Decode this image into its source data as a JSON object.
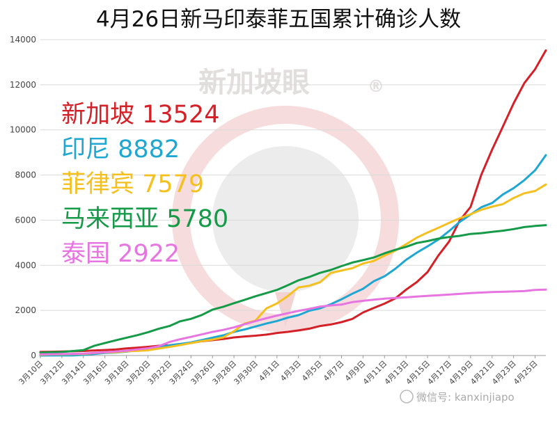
{
  "chart_data": {
    "type": "line",
    "title": "4月26日新马印泰菲五国累计确诊人数",
    "xlabel": "",
    "ylabel": "",
    "ylim": [
      0,
      14000
    ],
    "yticks": [
      0,
      2000,
      4000,
      6000,
      8000,
      10000,
      12000,
      14000
    ],
    "grid": "horizontal",
    "legend_position": "left",
    "dates": [
      "3月10日",
      "3月11日",
      "3月12日",
      "3月13日",
      "3月14日",
      "3月15日",
      "3月16日",
      "3月17日",
      "3月18日",
      "3月19日",
      "3月20日",
      "3月21日",
      "3月22日",
      "3月23日",
      "3月24日",
      "3月25日",
      "3月26日",
      "3月27日",
      "3月28日",
      "3月29日",
      "3月30日",
      "3月31日",
      "4月1日",
      "4月2日",
      "4月3日",
      "4月4日",
      "4月5日",
      "4月6日",
      "4月7日",
      "4月8日",
      "4月9日",
      "4月10日",
      "4月11日",
      "4月12日",
      "4月13日",
      "4月14日",
      "4月15日",
      "4月16日",
      "4月17日",
      "4月18日",
      "4月19日",
      "4月20日",
      "4月21日",
      "4月22日",
      "4月23日",
      "4月24日",
      "4月25日",
      "4月26日"
    ],
    "x_tick_labels": [
      "3月10日",
      "3月12日",
      "3月14日",
      "3月16日",
      "3月18日",
      "3月20日",
      "3月22日",
      "3月24日",
      "3月26日",
      "3月28日",
      "3月30日",
      "4月1日",
      "4月3日",
      "4月5日",
      "4月7日",
      "4月9日",
      "4月11日",
      "4月13日",
      "4月15日",
      "4月17日",
      "4月19日",
      "4月21日",
      "4月23日",
      "4月25日"
    ],
    "series": [
      {
        "name": "新加坡",
        "label": "新加坡 13524",
        "color": "#d42027",
        "values": [
          160,
          166,
          178,
          187,
          200,
          226,
          243,
          266,
          313,
          345,
          385,
          432,
          455,
          509,
          558,
          631,
          683,
          732,
          802,
          844,
          879,
          926,
          1000,
          1049,
          1114,
          1189,
          1309,
          1375,
          1481,
          1623,
          1910,
          2108,
          2299,
          2532,
          2918,
          3252,
          3699,
          4427,
          5050,
          5992,
          6588,
          8014,
          9125,
          10141,
          11178,
          12075,
          12693,
          13524
        ]
      },
      {
        "name": "印尼",
        "label": "印尼 8882",
        "color": "#1ea7d3",
        "values": [
          0,
          2,
          4,
          4,
          27,
          69,
          117,
          134,
          172,
          227,
          309,
          369,
          450,
          514,
          579,
          686,
          790,
          893,
          1046,
          1155,
          1285,
          1414,
          1528,
          1677,
          1790,
          1986,
          2092,
          2273,
          2491,
          2738,
          2956,
          3293,
          3512,
          3842,
          4241,
          4557,
          4839,
          5136,
          5516,
          5923,
          6248,
          6575,
          6760,
          7135,
          7418,
          7775,
          8211,
          8882
        ]
      },
      {
        "name": "菲律宾",
        "label": "菲律宾 7579",
        "color": "#f4c020",
        "values": [
          33,
          49,
          52,
          64,
          64,
          111,
          140,
          142,
          187,
          202,
          230,
          307,
          380,
          462,
          552,
          636,
          707,
          803,
          1075,
          1418,
          1546,
          2084,
          2311,
          2633,
          3018,
          3094,
          3246,
          3660,
          3764,
          3870,
          4076,
          4195,
          4428,
          4648,
          4932,
          5223,
          5453,
          5660,
          5878,
          6087,
          6259,
          6459,
          6599,
          6710,
          6981,
          7192,
          7294,
          7579
        ]
      },
      {
        "name": "马来西亚",
        "label": "马来西亚 5780",
        "color": "#159a48",
        "values": [
          129,
          149,
          158,
          197,
          238,
          428,
          553,
          673,
          790,
          900,
          1030,
          1183,
          1306,
          1518,
          1624,
          1796,
          2031,
          2161,
          2320,
          2470,
          2626,
          2766,
          2908,
          3116,
          3333,
          3483,
          3662,
          3793,
          3963,
          4119,
          4228,
          4346,
          4530,
          4683,
          4817,
          4987,
          5072,
          5182,
          5251,
          5305,
          5389,
          5425,
          5482,
          5532,
          5603,
          5691,
          5742,
          5780
        ]
      },
      {
        "name": "泰国",
        "label": "泰国 2922",
        "color": "#e775e1",
        "values": [
          53,
          59,
          70,
          75,
          82,
          114,
          147,
          177,
          212,
          272,
          322,
          411,
          599,
          721,
          827,
          934,
          1045,
          1136,
          1245,
          1388,
          1524,
          1651,
          1771,
          1875,
          1978,
          2067,
          2169,
          2220,
          2258,
          2369,
          2423,
          2473,
          2518,
          2551,
          2579,
          2613,
          2643,
          2672,
          2700,
          2733,
          2765,
          2792,
          2811,
          2826,
          2839,
          2854,
          2907,
          2922
        ]
      }
    ]
  },
  "watermark": {
    "text": "新加坡眼",
    "mark": "®"
  },
  "credit": {
    "text": "微信号: kanxinjiapo"
  }
}
